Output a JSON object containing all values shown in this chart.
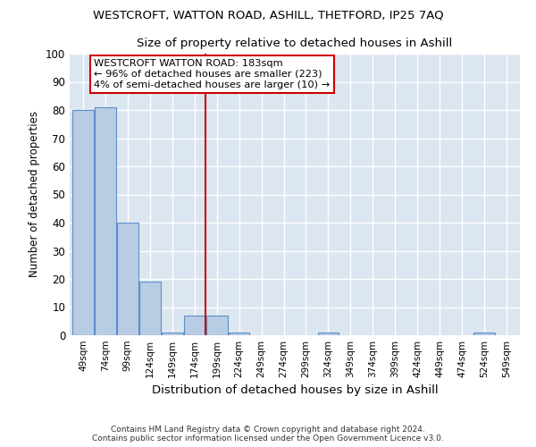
{
  "title": "WESTCROFT, WATTON ROAD, ASHILL, THETFORD, IP25 7AQ",
  "subtitle": "Size of property relative to detached houses in Ashill",
  "xlabel": "Distribution of detached houses by size in Ashill",
  "ylabel": "Number of detached properties",
  "categories": [
    "49sqm",
    "74sqm",
    "99sqm",
    "124sqm",
    "149sqm",
    "174sqm",
    "199sqm",
    "224sqm",
    "249sqm",
    "274sqm",
    "299sqm",
    "324sqm",
    "349sqm",
    "374sqm",
    "399sqm",
    "424sqm",
    "449sqm",
    "474sqm",
    "524sqm",
    "549sqm"
  ],
  "values": [
    80,
    81,
    40,
    19,
    1,
    7,
    7,
    1,
    0,
    0,
    0,
    1,
    0,
    0,
    0,
    0,
    0,
    0,
    1,
    0
  ],
  "bar_color": "#b8cce4",
  "bar_edge_color": "#5b8fc9",
  "background_color": "#dce6f1",
  "grid_color": "#ffffff",
  "red_line_x": 5.5,
  "annotation_line1": "WESTCROFT WATTON ROAD: 183sqm",
  "annotation_line2": "← 96% of detached houses are smaller (223)",
  "annotation_line3": "4% of semi-detached houses are larger (10) →",
  "annotation_box_facecolor": "#ffffff",
  "annotation_box_edgecolor": "#cc0000",
  "footer1": "Contains HM Land Registry data © Crown copyright and database right 2024.",
  "footer2": "Contains public sector information licensed under the Open Government Licence v3.0.",
  "ylim": [
    0,
    100
  ],
  "yticks": [
    0,
    10,
    20,
    30,
    40,
    50,
    60,
    70,
    80,
    90,
    100
  ]
}
